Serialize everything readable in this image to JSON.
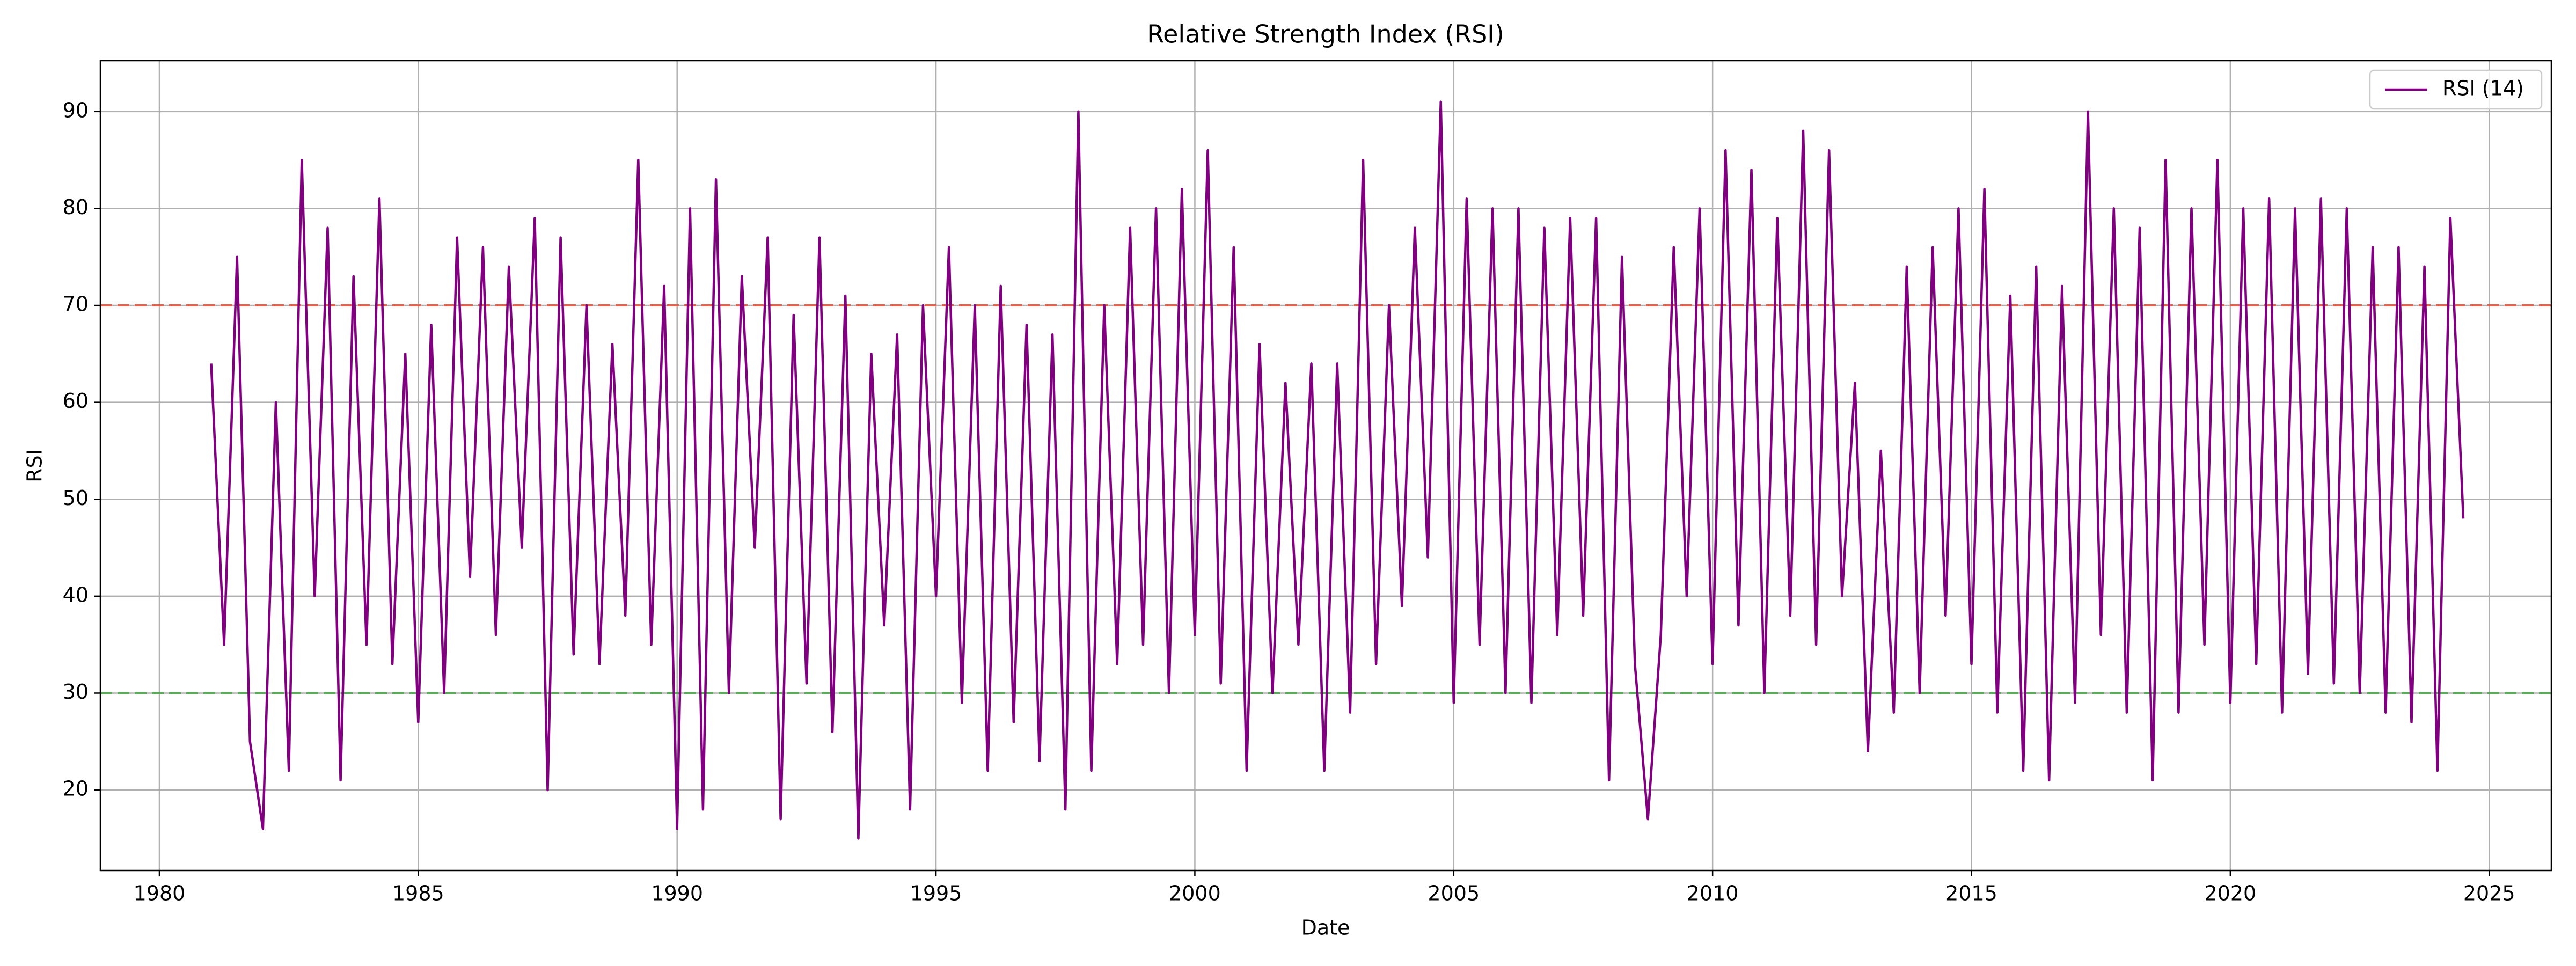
{
  "chart_data": {
    "type": "line",
    "title": "Relative Strength Index (RSI)",
    "x_label": "Date",
    "y_label": "RSI",
    "x": [
      1981,
      1981.25,
      1981.5,
      1981.75,
      1982,
      1982.25,
      1982.5,
      1982.75,
      1983,
      1983.25,
      1983.5,
      1983.75,
      1984,
      1984.25,
      1984.5,
      1984.75,
      1985,
      1985.25,
      1985.5,
      1985.75,
      1986,
      1986.25,
      1986.5,
      1986.75,
      1987,
      1987.25,
      1987.5,
      1987.75,
      1988,
      1988.25,
      1988.5,
      1988.75,
      1989,
      1989.25,
      1989.5,
      1989.75,
      1990,
      1990.25,
      1990.5,
      1990.75,
      1991,
      1991.25,
      1991.5,
      1991.75,
      1992,
      1992.25,
      1992.5,
      1992.75,
      1993,
      1993.25,
      1993.5,
      1993.75,
      1994,
      1994.25,
      1994.5,
      1994.75,
      1995,
      1995.25,
      1995.5,
      1995.75,
      1996,
      1996.25,
      1996.5,
      1996.75,
      1997,
      1997.25,
      1997.5,
      1997.75,
      1998,
      1998.25,
      1998.5,
      1998.75,
      1999,
      1999.25,
      1999.5,
      1999.75,
      2000,
      2000.25,
      2000.5,
      2000.75,
      2001,
      2001.25,
      2001.5,
      2001.75,
      2002,
      2002.25,
      2002.5,
      2002.75,
      2003,
      2003.25,
      2003.5,
      2003.75,
      2004,
      2004.25,
      2004.5,
      2004.75,
      2005,
      2005.25,
      2005.5,
      2005.75,
      2006,
      2006.25,
      2006.5,
      2006.75,
      2007,
      2007.25,
      2007.5,
      2007.75,
      2008,
      2008.25,
      2008.5,
      2008.75,
      2009,
      2009.25,
      2009.5,
      2009.75,
      2010,
      2010.25,
      2010.5,
      2010.75,
      2011,
      2011.25,
      2011.5,
      2011.75,
      2012,
      2012.25,
      2012.5,
      2012.75,
      2013,
      2013.25,
      2013.5,
      2013.75,
      2014,
      2014.25,
      2014.5,
      2014.75,
      2015,
      2015.25,
      2015.5,
      2015.75,
      2016,
      2016.25,
      2016.5,
      2016.75,
      2017,
      2017.25,
      2017.5,
      2017.75,
      2018,
      2018.25,
      2018.5,
      2018.75,
      2019,
      2019.25,
      2019.5,
      2019.75,
      2020,
      2020.25,
      2020.5,
      2020.75,
      2021,
      2021.25,
      2021.5,
      2021.75,
      2022,
      2022.25,
      2022.5,
      2022.75,
      2023,
      2023.25,
      2023.5,
      2023.75,
      2024,
      2024.25,
      2024.5
    ],
    "series": [
      {
        "name": "RSI (14)",
        "color": "#800080",
        "values": [
          64,
          35,
          75,
          25,
          16,
          60,
          22,
          85,
          40,
          78,
          21,
          73,
          35,
          81,
          33,
          65,
          27,
          68,
          30,
          77,
          42,
          76,
          36,
          74,
          45,
          79,
          20,
          77,
          34,
          70,
          33,
          66,
          38,
          85,
          35,
          72,
          16,
          80,
          18,
          83,
          30,
          73,
          45,
          77,
          17,
          69,
          31,
          77,
          26,
          71,
          15,
          65,
          37,
          67,
          18,
          70,
          40,
          76,
          29,
          70,
          22,
          72,
          27,
          68,
          23,
          67,
          18,
          90,
          22,
          70,
          33,
          78,
          35,
          80,
          30,
          82,
          36,
          86,
          31,
          76,
          22,
          66,
          30,
          62,
          35,
          64,
          22,
          64,
          28,
          85,
          33,
          70,
          39,
          78,
          44,
          91,
          29,
          81,
          35,
          80,
          30,
          80,
          29,
          78,
          36,
          79,
          38,
          79,
          21,
          75,
          33,
          17,
          36,
          76,
          40,
          80,
          33,
          86,
          37,
          84,
          30,
          79,
          38,
          88,
          35,
          86,
          40,
          62,
          24,
          55,
          28,
          74,
          30,
          76,
          38,
          80,
          33,
          82,
          28,
          71,
          22,
          74,
          21,
          72,
          29,
          90,
          36,
          80,
          28,
          78,
          21,
          85,
          28,
          80,
          35,
          85,
          29,
          80,
          33,
          81,
          28,
          80,
          32,
          81,
          31,
          80,
          30,
          76,
          28,
          76,
          27,
          74,
          22,
          79,
          48
        ]
      }
    ],
    "reference_lines": [
      {
        "value": 70,
        "color": "#e8604c"
      },
      {
        "value": 30,
        "color": "#5aac5a"
      }
    ],
    "xlim": [
      1978.86,
      2026.2
    ],
    "xticks": [
      1980,
      1985,
      1990,
      1995,
      2000,
      2005,
      2010,
      2015,
      2020,
      2025
    ],
    "ylim": [
      11.7,
      95.25
    ],
    "yticks": [
      20,
      30,
      40,
      50,
      60,
      70,
      80,
      90
    ],
    "grid": true,
    "legend": "upper right"
  }
}
